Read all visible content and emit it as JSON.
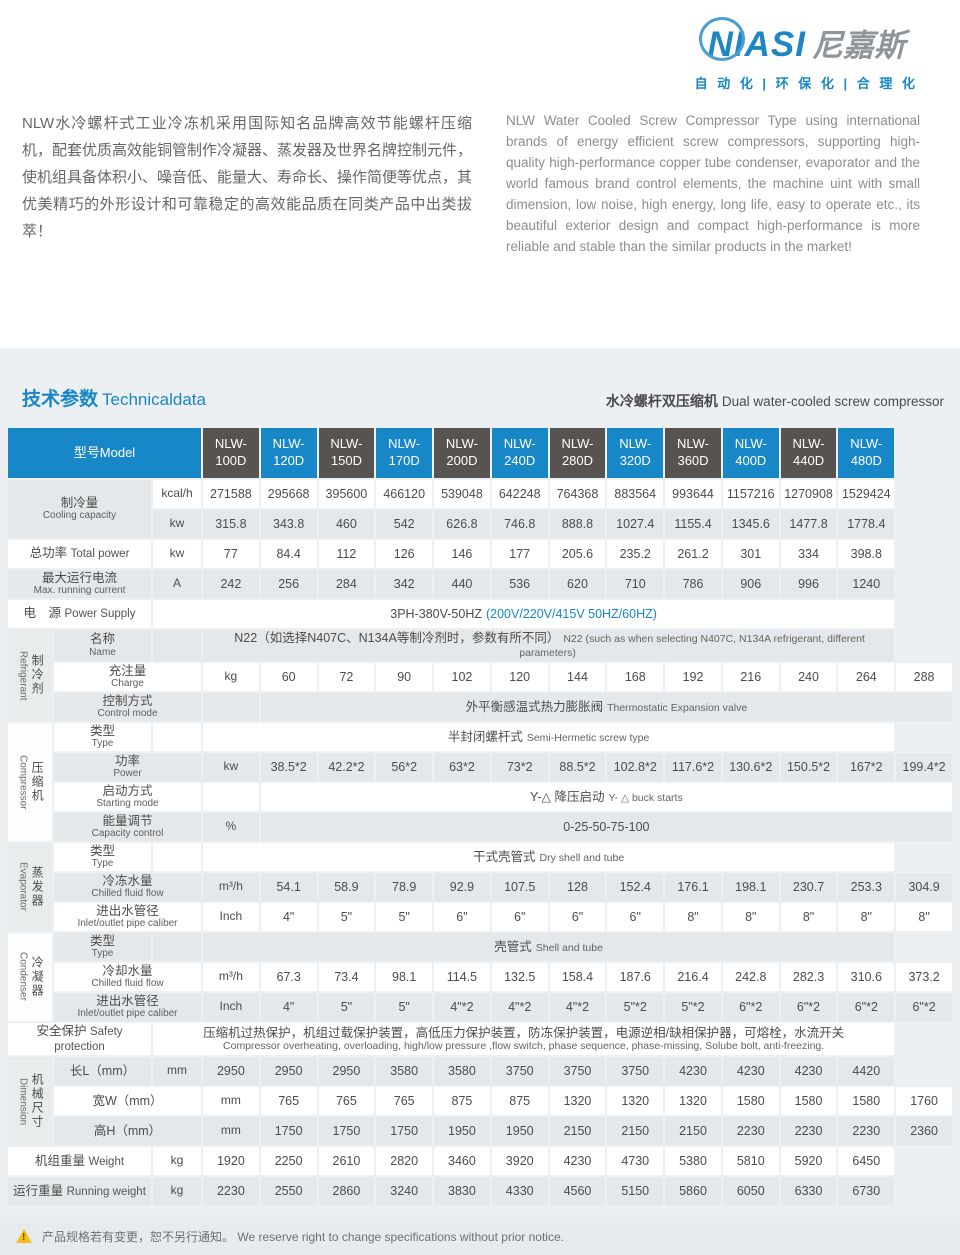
{
  "logo": {
    "brand": "NIASI",
    "brand_cn": "尼嘉斯",
    "tagline": "自 动 化  |  环 保 化  |  合 理 化",
    "accent_color": "#1787c7"
  },
  "intro": {
    "zh": "NLW水冷螺杆式工业冷冻机采用国际知名品牌高效节能螺杆压缩机，配套优质高效能铜管制作冷凝器、蒸发器及世界名牌控制元件，使机组具备体积小、噪音低、能量大、寿命长、操作简便等优点，其优美精巧的外形设计和可靠稳定的高效能品质在同类产品中出类拔萃！",
    "en": "NLW Water Cooled Screw Compressor Type using international brands of energy efficient screw compressors, supporting high-quality high-performance copper tube condenser, evaporator and the world famous brand control elements, the machine uint with small dimension, low noise, high energy, long life, easy to operate etc., its beautiful exterior design and compact high-performance is more reliable and stable than the similar products in the market!"
  },
  "section": {
    "title_zh": "技术参数",
    "title_en": "Technicaldata",
    "subtitle_zh": "水冷螺杆双压缩机",
    "subtitle_en": "Dual water-cooled screw compressor"
  },
  "table": {
    "model_header": "型号Model",
    "models": [
      "NLW-100D",
      "NLW-120D",
      "NLW-150D",
      "NLW-170D",
      "NLW-200D",
      "NLW-240D",
      "NLW-280D",
      "NLW-320D",
      "NLW-360D",
      "NLW-400D",
      "NLW-440D",
      "NLW-480D"
    ],
    "header_colors": {
      "blue": "#1787c7",
      "dark": "#575350"
    },
    "rows": [
      {
        "label": {
          "zh": "制冷量",
          "en": "Cooling capacity",
          "stacked": true
        },
        "label_rowspan": 2,
        "unit": "kcal/h",
        "values": [
          "271588",
          "295668",
          "395600",
          "466120",
          "539048",
          "642248",
          "764368",
          "883564",
          "993644",
          "1157216",
          "1270908",
          "1529424"
        ]
      },
      {
        "label_skip": true,
        "unit": "kw",
        "values": [
          "315.8",
          "343.8",
          "460",
          "542",
          "626.8",
          "746.8",
          "888.8",
          "1027.4",
          "1155.4",
          "1345.6",
          "1477.8",
          "1778.4"
        ]
      },
      {
        "label": {
          "zh": "总功率",
          "en": "Total power"
        },
        "unit": "kw",
        "values": [
          "77",
          "84.4",
          "112",
          "126",
          "146",
          "177",
          "205.6",
          "235.2",
          "261.2",
          "301",
          "334",
          "398.8"
        ]
      },
      {
        "label": {
          "zh": "最大运行电流",
          "en": "Max. running current",
          "stacked": true
        },
        "unit": "A",
        "values": [
          "242",
          "256",
          "284",
          "342",
          "440",
          "536",
          "620",
          "710",
          "786",
          "906",
          "996",
          "1240"
        ]
      },
      {
        "label": {
          "zh": "电　源",
          "en": "Power Supply"
        },
        "full": [
          {
            "text": "3PH-380V-50HZ"
          },
          {
            "text": "(200V/220V/415V  50HZ/60HZ)",
            "accent": true
          }
        ]
      },
      {
        "group": {
          "zh": "制冷剂",
          "en": "Refrigerant",
          "span": 3,
          "gray": true
        },
        "label": {
          "zh": "名称",
          "en": "Name",
          "stacked": true
        },
        "unit": "",
        "merged": [
          {
            "text": "N22（如选择N407C、N134A等制冷剂时，参数有所不同）"
          },
          {
            "text": "N22 (such as when selecting N407C, N134A refrigerant, different parameters)",
            "small": true
          }
        ]
      },
      {
        "label": {
          "zh": "充注量",
          "en": "Charge",
          "stacked": true
        },
        "unit": "kg",
        "values": [
          "60",
          "72",
          "90",
          "102",
          "120",
          "144",
          "168",
          "192",
          "216",
          "240",
          "264",
          "288"
        ]
      },
      {
        "label": {
          "zh": "控制方式",
          "en": "Control mode",
          "stacked": true
        },
        "unit": "",
        "merged": [
          {
            "text": "外平衡感温式热力膨胀阀"
          },
          {
            "text": "Thermostatic Expansion valve",
            "small": true
          }
        ]
      },
      {
        "group": {
          "zh": "压缩机",
          "en": "Compressor",
          "span": 4,
          "gray": false
        },
        "label": {
          "zh": "类型",
          "en": "Type",
          "stacked": true
        },
        "unit": "",
        "merged": [
          {
            "text": "半封闭螺杆式"
          },
          {
            "text": "Semi-Hermetic screw type",
            "small": true
          }
        ]
      },
      {
        "label": {
          "zh": "功率",
          "en": "Power",
          "stacked": true
        },
        "unit": "kw",
        "values": [
          "38.5*2",
          "42.2*2",
          "56*2",
          "63*2",
          "73*2",
          "88.5*2",
          "102.8*2",
          "117.6*2",
          "130.6*2",
          "150.5*2",
          "167*2",
          "199.4*2"
        ]
      },
      {
        "label": {
          "zh": "启动方式",
          "en": "Starting mode",
          "stacked": true
        },
        "unit": "",
        "merged": [
          {
            "text": "Y-△ 降压启动"
          },
          {
            "text": "Y- △ buck starts",
            "small": true
          }
        ]
      },
      {
        "label": {
          "zh": "能量调节",
          "en": "Capacity control",
          "stacked": true
        },
        "unit": "%",
        "merged": [
          {
            "text": "0-25-50-75-100"
          }
        ]
      },
      {
        "group": {
          "zh": "蒸发器",
          "en": "Evaporator",
          "span": 3,
          "gray": true
        },
        "label": {
          "zh": "类型",
          "en": "Type",
          "stacked": true
        },
        "unit": "",
        "merged": [
          {
            "text": "干式壳管式"
          },
          {
            "text": "Dry shell and tube",
            "small": true
          }
        ]
      },
      {
        "label": {
          "zh": "冷冻水量",
          "en": "Chilled fluid flow",
          "stacked": true
        },
        "unit": "m³/h",
        "values": [
          "54.1",
          "58.9",
          "78.9",
          "92.9",
          "107.5",
          "128",
          "152.4",
          "176.1",
          "198.1",
          "230.7",
          "253.3",
          "304.9"
        ]
      },
      {
        "label": {
          "zh": "进出水管径",
          "en": "Inlet/outlet pipe caliber",
          "stacked": true
        },
        "unit": "Inch",
        "values": [
          "4\"",
          "5\"",
          "5\"",
          "6\"",
          "6\"",
          "6\"",
          "6\"",
          "8\"",
          "8\"",
          "8\"",
          "8\"",
          "8\""
        ]
      },
      {
        "group": {
          "zh": "冷凝器",
          "en": "Condenser",
          "span": 3,
          "gray": false
        },
        "label": {
          "zh": "类型",
          "en": "Type",
          "stacked": true
        },
        "unit": "",
        "merged": [
          {
            "text": "壳管式"
          },
          {
            "text": "Shell and tube",
            "small": true
          }
        ]
      },
      {
        "label": {
          "zh": "冷却水量",
          "en": "Chilled fluid flow",
          "stacked": true
        },
        "unit": "m³/h",
        "values": [
          "67.3",
          "73.4",
          "98.1",
          "114.5",
          "132.5",
          "158.4",
          "187.6",
          "216.4",
          "242.8",
          "282.3",
          "310.6",
          "373.2"
        ]
      },
      {
        "label": {
          "zh": "进出水管径",
          "en": "Inlet/outlet pipe caliber",
          "stacked": true
        },
        "unit": "Inch",
        "values": [
          "4\"",
          "5\"",
          "5\"",
          "4\"*2",
          "4\"*2",
          "4\"*2",
          "5\"*2",
          "5\"*2",
          "6\"*2",
          "6\"*2",
          "6\"*2",
          "6\"*2"
        ]
      },
      {
        "label": {
          "zh": "安全保护",
          "en": "Safety protection"
        },
        "full": [
          {
            "text": "压缩机过热保护，机组过载保护装置，高低压力保护装置，防冻保护装置，电源逆相/缺相保护器，可熔栓，水流开关",
            "block": true
          },
          {
            "text": "Compressor overheating, overloading, high/low pressure ,flow switch, phase sequence, phase-missing, Solube bolt, anti-freezing.",
            "small": true,
            "block": true
          }
        ]
      },
      {
        "group": {
          "zh": "机械尺寸",
          "en": "Dimension",
          "span": 3,
          "gray": true
        },
        "label": {
          "zh": "长L（mm）"
        },
        "unit": "mm",
        "values": [
          "2950",
          "2950",
          "2950",
          "3580",
          "3580",
          "3750",
          "3750",
          "3750",
          "4230",
          "4230",
          "4230",
          "4420"
        ]
      },
      {
        "label": {
          "zh": "宽W（mm）"
        },
        "unit": "mm",
        "values": [
          "765",
          "765",
          "765",
          "875",
          "875",
          "1320",
          "1320",
          "1320",
          "1580",
          "1580",
          "1580",
          "1760"
        ]
      },
      {
        "label": {
          "zh": "高H（mm）"
        },
        "unit": "mm",
        "values": [
          "1750",
          "1750",
          "1750",
          "1950",
          "1950",
          "2150",
          "2150",
          "2150",
          "2230",
          "2230",
          "2230",
          "2360"
        ]
      },
      {
        "label": {
          "zh": "机组重量",
          "en": "Weight"
        },
        "unit": "kg",
        "values": [
          "1920",
          "2250",
          "2610",
          "2820",
          "3460",
          "3920",
          "4230",
          "4730",
          "5380",
          "5810",
          "5920",
          "6450"
        ]
      },
      {
        "label": {
          "zh": "运行重量",
          "en": "Running weight"
        },
        "unit": "kg",
        "values": [
          "2230",
          "2550",
          "2860",
          "3240",
          "3830",
          "4330",
          "4560",
          "5150",
          "5860",
          "6050",
          "6330",
          "6730"
        ]
      }
    ]
  },
  "footer": {
    "note_zh": "产品规格若有变更，恕不另行通知。",
    "note_en": "We reserve right to change specifications without prior notice."
  }
}
